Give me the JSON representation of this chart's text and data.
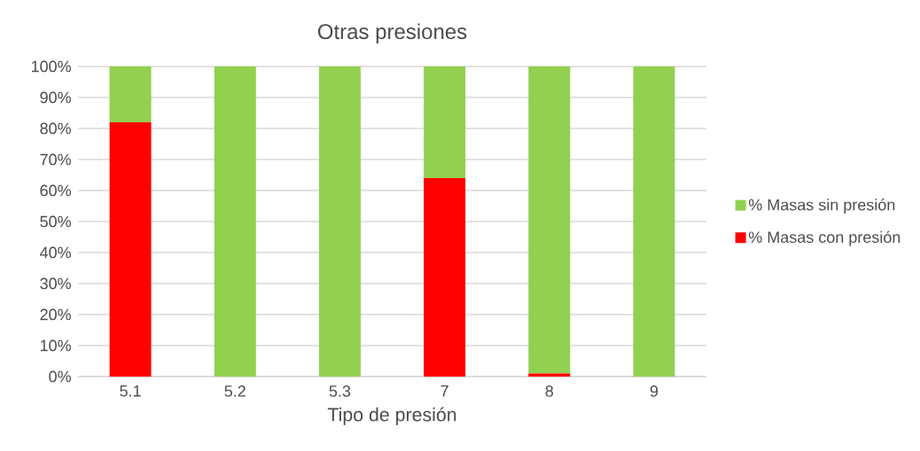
{
  "chart_data": {
    "type": "bar",
    "title": "Otras presiones",
    "xlabel": "Tipo de presión",
    "stacked": true,
    "categories": [
      "5.1",
      "5.2",
      "5.3",
      "7",
      "8",
      "9"
    ],
    "series": [
      {
        "name": "% Masas con presión",
        "color": "#ff0000",
        "values": [
          82,
          0,
          0,
          64,
          1,
          0
        ]
      },
      {
        "name": "% Masas sin  presión",
        "color": "#92d050",
        "values": [
          18,
          100,
          100,
          36,
          99,
          100
        ]
      }
    ],
    "ylim": [
      0,
      100
    ],
    "yticks": [
      {
        "value": 0,
        "label": "0%"
      },
      {
        "value": 10,
        "label": "10%"
      },
      {
        "value": 20,
        "label": "20%"
      },
      {
        "value": 30,
        "label": "30%"
      },
      {
        "value": 40,
        "label": "40%"
      },
      {
        "value": 50,
        "label": "50%"
      },
      {
        "value": 60,
        "label": "60%"
      },
      {
        "value": 70,
        "label": "70%"
      },
      {
        "value": 80,
        "label": "80%"
      },
      {
        "value": 90,
        "label": "90%"
      },
      {
        "value": 100,
        "label": "100%"
      }
    ],
    "grid": "y",
    "legend": "right"
  }
}
